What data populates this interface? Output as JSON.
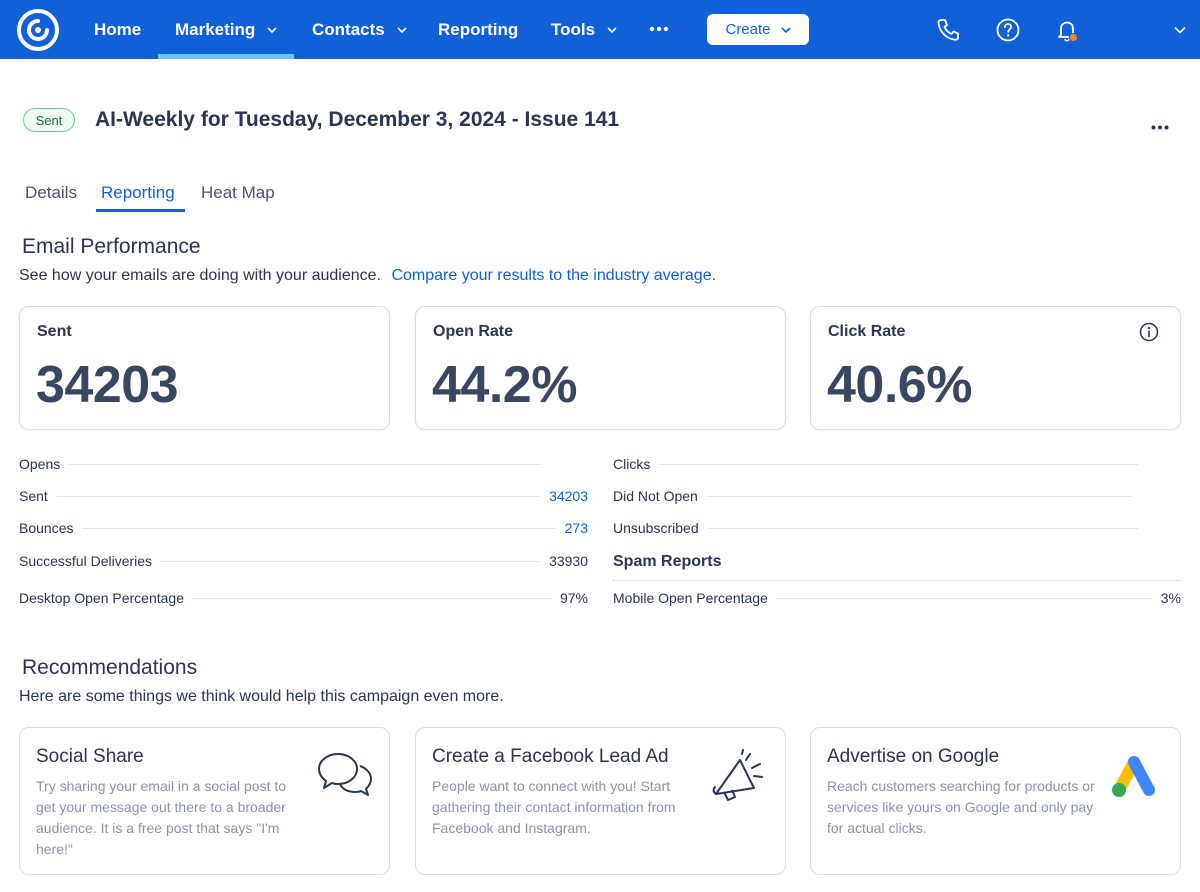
{
  "nav": {
    "items": [
      {
        "label": "Home",
        "has_menu": false
      },
      {
        "label": "Marketing",
        "has_menu": true,
        "active": true
      },
      {
        "label": "Contacts",
        "has_menu": true
      },
      {
        "label": "Reporting",
        "has_menu": false
      },
      {
        "label": "Tools",
        "has_menu": true
      }
    ],
    "more_icon": "ellipsis-icon",
    "create_label": "Create",
    "right_icons": [
      "phone-icon",
      "help-icon",
      "bell-icon",
      "chevron-down-icon"
    ],
    "colors": {
      "bar": "#1160d8",
      "active_indicator": "#6cc3f5",
      "notification_dot": "#f28a1e"
    }
  },
  "header": {
    "status": "Sent",
    "title": "AI-Weekly for Tuesday, December 3, 2024 - Issue 141"
  },
  "tabs": [
    {
      "label": "Details",
      "active": false
    },
    {
      "label": "Reporting",
      "active": true
    },
    {
      "label": "Heat Map",
      "active": false
    }
  ],
  "performance": {
    "title": "Email Performance",
    "subtitle": "See how your emails are doing with your audience.",
    "compare_link": "Compare your results to the industry average.",
    "cards": [
      {
        "label": "Sent",
        "value": "34203"
      },
      {
        "label": "Open Rate",
        "value": "44.2%"
      },
      {
        "label": "Click Rate",
        "value": "40.6%",
        "info_icon": "info-icon"
      }
    ],
    "left_metrics": [
      {
        "label": "Opens",
        "value": ""
      },
      {
        "label": "Sent",
        "value": "34203",
        "link": true
      },
      {
        "label": "Bounces",
        "value": "273",
        "link": true
      },
      {
        "label": "Successful Deliveries",
        "value": "33930"
      },
      {
        "label": "Desktop Open Percentage",
        "value": "97%"
      }
    ],
    "right_metrics": [
      {
        "label": "Clicks",
        "value": ""
      },
      {
        "label": "Did Not Open",
        "value": ""
      },
      {
        "label": "Unsubscribed",
        "value": ""
      },
      {
        "label": "Mobile Open Percentage",
        "value": "3%"
      }
    ],
    "spam_reports_label": "Spam Reports"
  },
  "recommendations": {
    "title": "Recommendations",
    "subtitle": "Here are some things we think would help this campaign even more.",
    "cards": [
      {
        "title": "Social Share",
        "description": "Try sharing your email in a social post to get your message out there to a broader audience. It is a free post that says \"I'm here!\"",
        "icon": "speech-bubbles-icon"
      },
      {
        "title": "Create a Facebook Lead Ad",
        "description": "People want to connect with you! Start gathering their contact information from Facebook and Instagram.",
        "icon": "megaphone-icon"
      },
      {
        "title": "Advertise on Google",
        "description": "Reach customers searching for products or services like yours on Google and only pay for actual clicks.",
        "icon": "google-ads-icon"
      }
    ]
  }
}
